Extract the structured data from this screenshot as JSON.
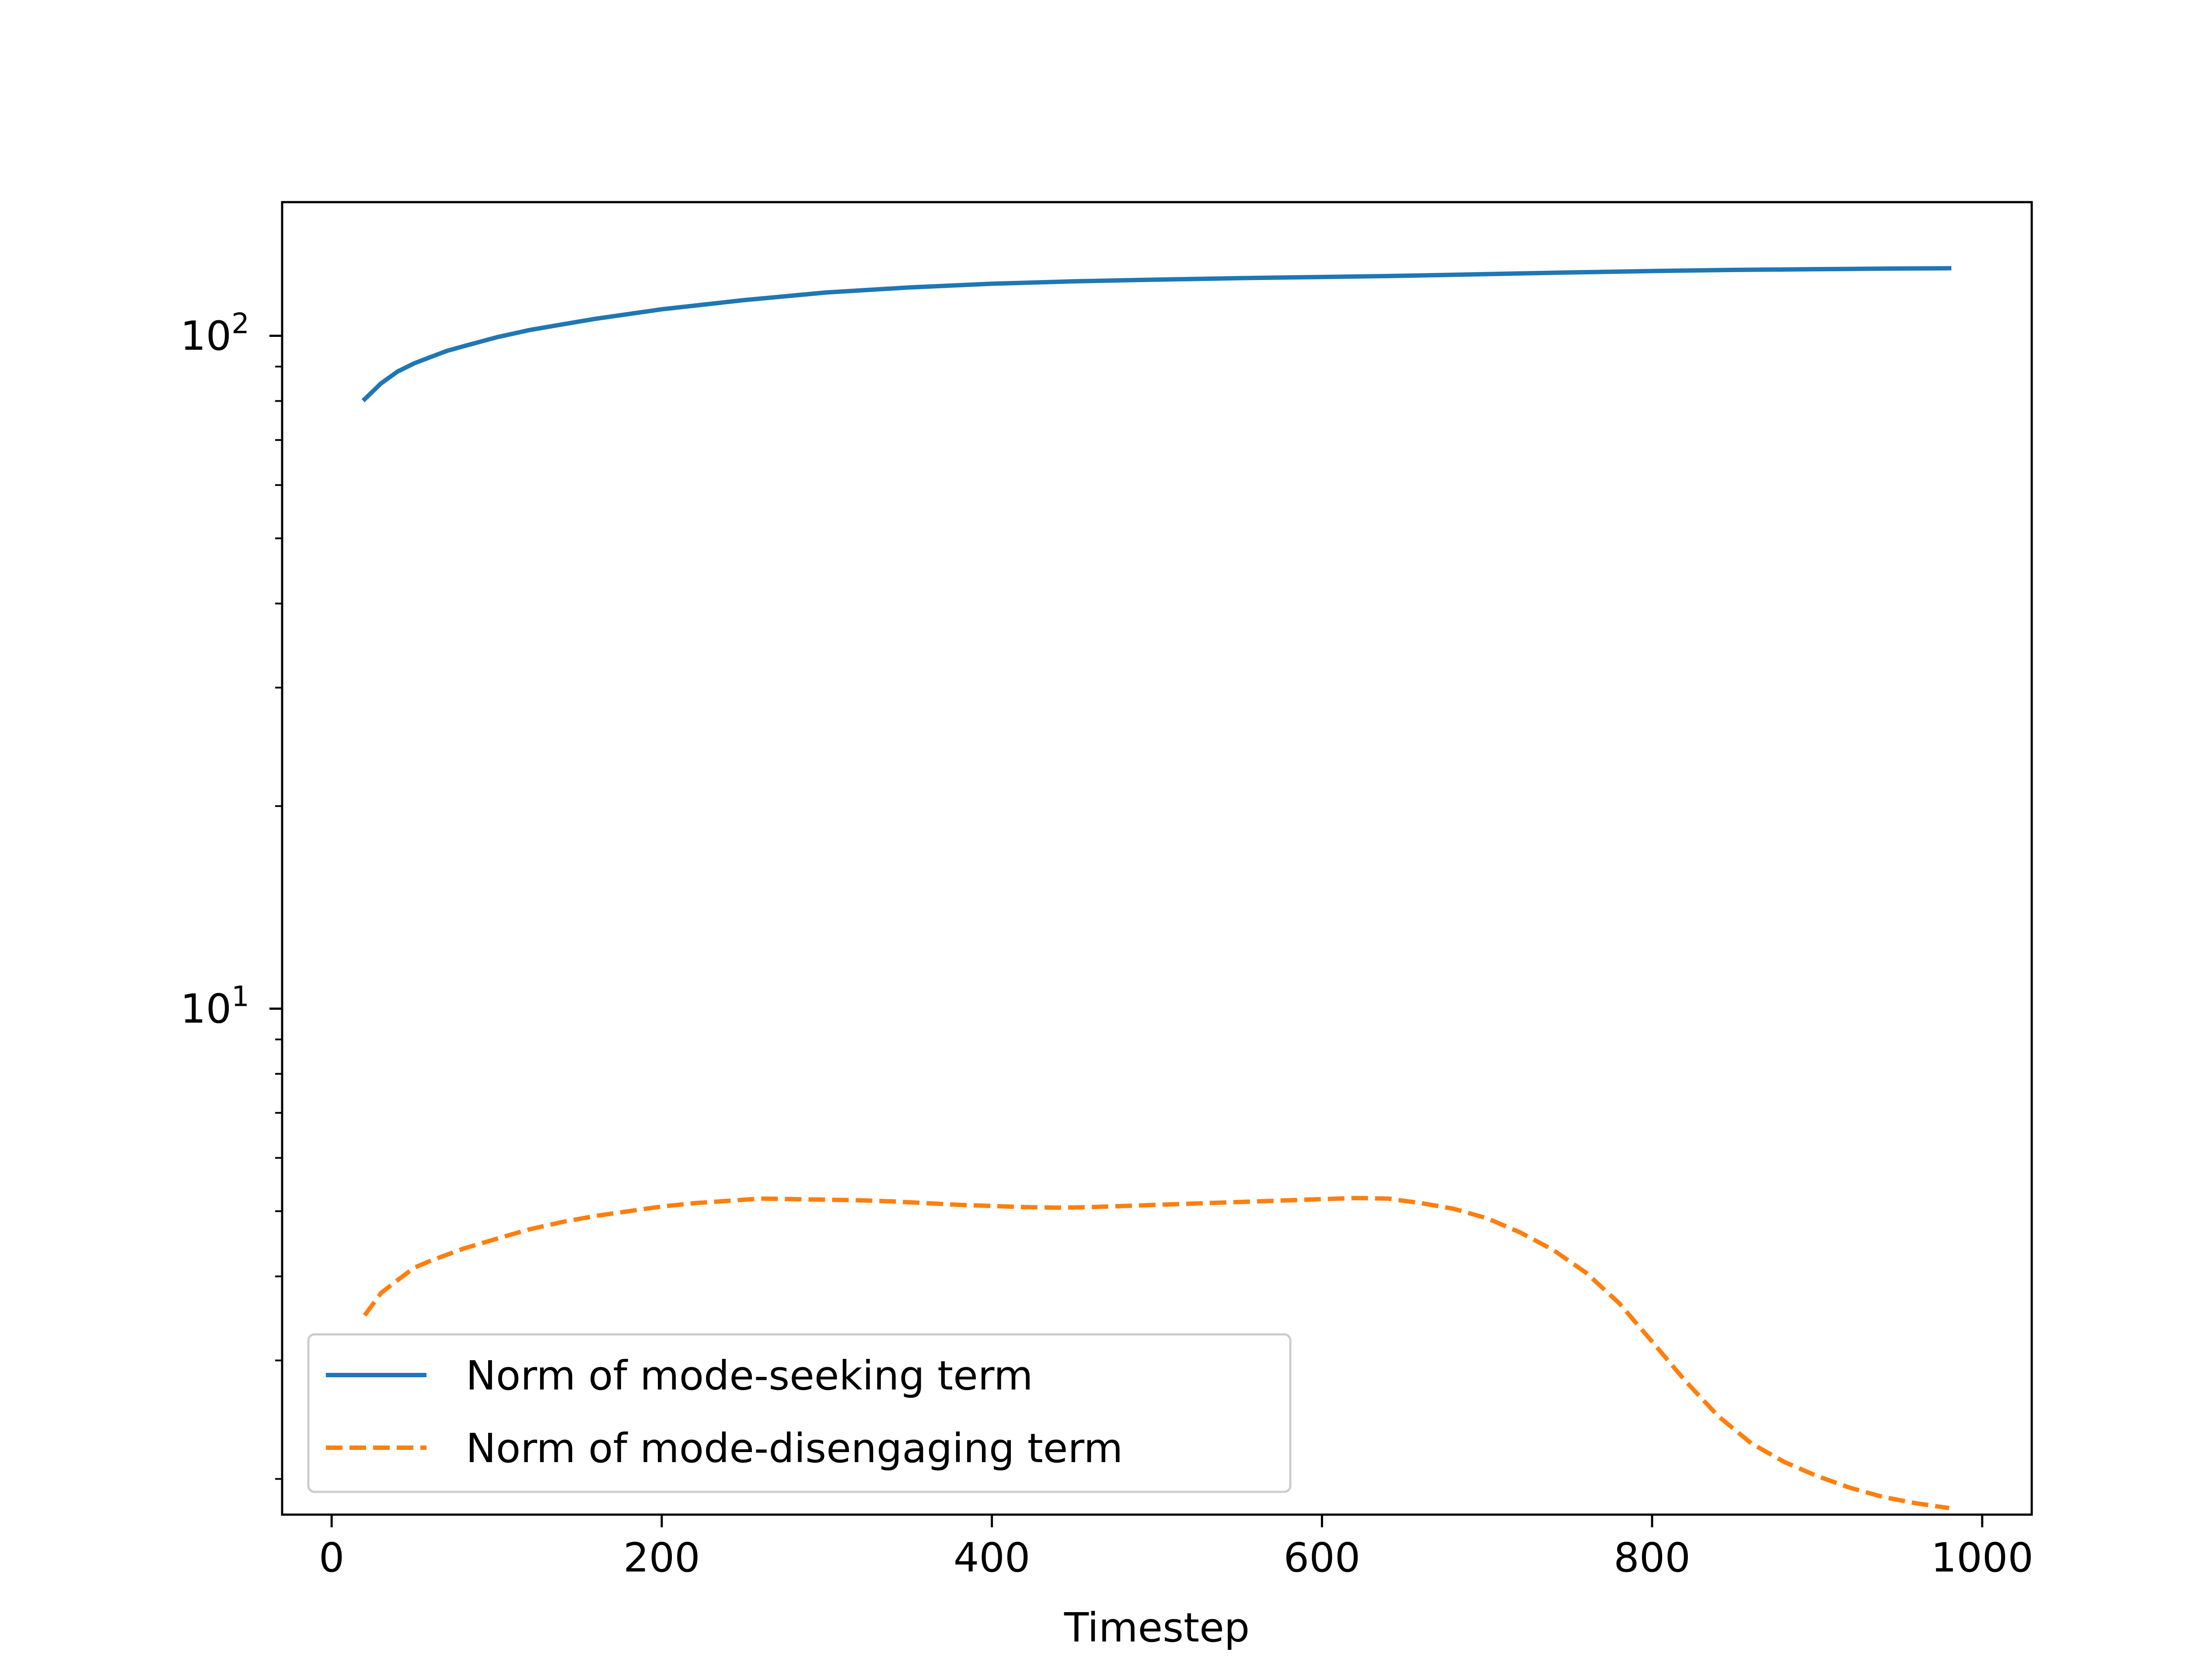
{
  "chart_data": {
    "type": "line",
    "title": "",
    "xlabel": "Timestep",
    "ylabel": "",
    "xlim": [
      -30,
      1030
    ],
    "ylim": [
      1.77,
      158
    ],
    "yscale": "log",
    "grid": false,
    "legend_position": "lower-left",
    "x_ticks": [
      0,
      200,
      400,
      600,
      800,
      1000
    ],
    "x_tick_labels": [
      "0",
      "200",
      "400",
      "600",
      "800",
      "1000"
    ],
    "y_major_ticks": [
      {
        "value": 10,
        "base": "10",
        "exponent": "1"
      },
      {
        "value": 100,
        "base": "10",
        "exponent": "2"
      }
    ],
    "y_minor_ticks": [
      2,
      3,
      4,
      5,
      6,
      7,
      8,
      9,
      20,
      30,
      40,
      50,
      60,
      70,
      80,
      90
    ],
    "series": [
      {
        "name": "Norm of mode-seeking term",
        "color": "#1f77b4",
        "style": "solid",
        "x": [
          20,
          30,
          40,
          50,
          60,
          70,
          80,
          100,
          120,
          140,
          160,
          200,
          250,
          300,
          350,
          400,
          450,
          500,
          550,
          600,
          650,
          700,
          750,
          800,
          850,
          900,
          950,
          980
        ],
        "y": [
          80.5,
          85,
          88.5,
          91,
          93,
          95,
          96.5,
          99.5,
          102,
          104,
          106,
          109.5,
          113,
          116,
          118,
          119.5,
          120.5,
          121.2,
          121.8,
          122.3,
          122.8,
          123.5,
          124.2,
          124.8,
          125.3,
          125.6,
          125.9,
          126.0
        ]
      },
      {
        "name": "Norm of mode-disengaging term",
        "color": "#ff7f0e",
        "style": "dashed",
        "x": [
          20,
          30,
          40,
          50,
          60,
          80,
          100,
          120,
          140,
          160,
          180,
          200,
          220,
          240,
          260,
          280,
          300,
          320,
          340,
          360,
          380,
          400,
          420,
          440,
          460,
          480,
          500,
          520,
          540,
          560,
          580,
          600,
          620,
          640,
          660,
          680,
          700,
          720,
          740,
          760,
          780,
          800,
          820,
          840,
          860,
          880,
          900,
          920,
          940,
          960,
          980
        ],
        "y": [
          3.5,
          3.78,
          3.95,
          4.12,
          4.22,
          4.4,
          4.55,
          4.7,
          4.82,
          4.92,
          5.0,
          5.08,
          5.14,
          5.18,
          5.22,
          5.21,
          5.2,
          5.19,
          5.17,
          5.14,
          5.11,
          5.09,
          5.07,
          5.06,
          5.07,
          5.09,
          5.11,
          5.13,
          5.15,
          5.17,
          5.19,
          5.21,
          5.23,
          5.22,
          5.14,
          5.04,
          4.88,
          4.65,
          4.38,
          4.05,
          3.65,
          3.2,
          2.8,
          2.48,
          2.26,
          2.12,
          2.02,
          1.94,
          1.88,
          1.84,
          1.81
        ]
      }
    ]
  }
}
